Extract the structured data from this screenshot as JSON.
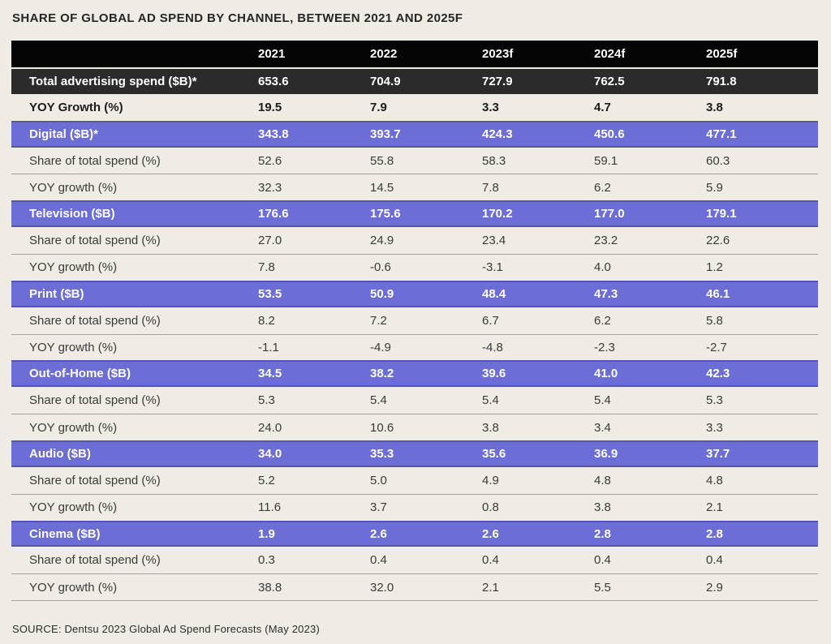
{
  "colors": {
    "background": "#efece6",
    "header_black": "#050505",
    "total_row_dark": "#2b2b2b",
    "channel_purple": "#6c6dd5",
    "channel_purple_border": "#5556a8",
    "separator_gray": "#a3a19b",
    "text_dark": "#3b3a37",
    "text_white": "#ffffff"
  },
  "chart_data": {
    "type": "table",
    "title": "SHARE OF GLOBAL AD SPEND BY CHANNEL, BETWEEN 2021 AND 2025F",
    "source": "SOURCE: Dentsu 2023 Global Ad Spend Forecasts (May 2023)",
    "columns": [
      "2021",
      "2022",
      "2023f",
      "2024f",
      "2025f"
    ],
    "rows": [
      {
        "label": "Total advertising spend ($B)*",
        "row_type": "total",
        "values": [
          "653.6",
          "704.9",
          "727.9",
          "762.5",
          "791.8"
        ]
      },
      {
        "label": "YOY Growth (%)",
        "row_type": "total_growth",
        "values": [
          "19.5",
          "7.9",
          "3.3",
          "4.7",
          "3.8"
        ]
      },
      {
        "label": "Digital ($B)*",
        "row_type": "channel",
        "values": [
          "343.8",
          "393.7",
          "424.3",
          "450.6",
          "477.1"
        ]
      },
      {
        "label": "Share of total spend (%)",
        "row_type": "share",
        "values": [
          "52.6",
          "55.8",
          "58.3",
          "59.1",
          "60.3"
        ]
      },
      {
        "label": "YOY growth (%)",
        "row_type": "growth",
        "values": [
          "32.3",
          "14.5",
          "7.8",
          "6.2",
          "5.9"
        ]
      },
      {
        "label": "Television ($B)",
        "row_type": "channel",
        "values": [
          "176.6",
          "175.6",
          "170.2",
          "177.0",
          "179.1"
        ]
      },
      {
        "label": "Share of total spend (%)",
        "row_type": "share",
        "values": [
          "27.0",
          "24.9",
          "23.4",
          "23.2",
          "22.6"
        ]
      },
      {
        "label": "YOY growth (%)",
        "row_type": "growth",
        "values": [
          "7.8",
          "-0.6",
          "-3.1",
          "4.0",
          "1.2"
        ]
      },
      {
        "label": "Print ($B)",
        "row_type": "channel",
        "values": [
          "53.5",
          "50.9",
          "48.4",
          "47.3",
          "46.1"
        ]
      },
      {
        "label": "Share of total spend (%)",
        "row_type": "share",
        "values": [
          "8.2",
          "7.2",
          "6.7",
          "6.2",
          "5.8"
        ]
      },
      {
        "label": "YOY growth (%)",
        "row_type": "growth",
        "values": [
          "-1.1",
          "-4.9",
          "-4.8",
          "-2.3",
          "-2.7"
        ]
      },
      {
        "label": "Out-of-Home ($B)",
        "row_type": "channel",
        "values": [
          "34.5",
          "38.2",
          "39.6",
          "41.0",
          "42.3"
        ]
      },
      {
        "label": "Share of total spend (%)",
        "row_type": "share",
        "values": [
          "5.3",
          "5.4",
          "5.4",
          "5.4",
          "5.3"
        ]
      },
      {
        "label": "YOY growth (%)",
        "row_type": "growth",
        "values": [
          "24.0",
          "10.6",
          "3.8",
          "3.4",
          "3.3"
        ]
      },
      {
        "label": "Audio ($B)",
        "row_type": "channel",
        "values": [
          "34.0",
          "35.3",
          "35.6",
          "36.9",
          "37.7"
        ]
      },
      {
        "label": "Share of total spend (%)",
        "row_type": "share",
        "values": [
          "5.2",
          "5.0",
          "4.9",
          "4.8",
          "4.8"
        ]
      },
      {
        "label": "YOY growth (%)",
        "row_type": "growth",
        "values": [
          "11.6",
          "3.7",
          "0.8",
          "3.8",
          "2.1"
        ]
      },
      {
        "label": "Cinema ($B)",
        "row_type": "channel",
        "values": [
          "1.9",
          "2.6",
          "2.6",
          "2.8",
          "2.8"
        ]
      },
      {
        "label": "Share of total spend (%)",
        "row_type": "share",
        "values": [
          "0.3",
          "0.4",
          "0.4",
          "0.4",
          "0.4"
        ]
      },
      {
        "label": "YOY growth (%)",
        "row_type": "growth",
        "values": [
          "38.8",
          "32.0",
          "2.1",
          "5.5",
          "2.9"
        ]
      }
    ]
  }
}
